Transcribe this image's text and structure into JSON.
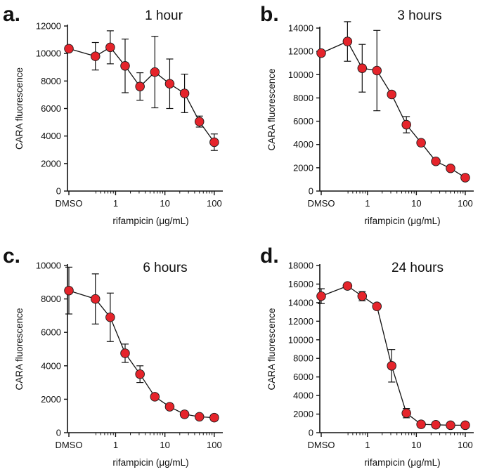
{
  "chart_data": [
    {
      "type": "scatter",
      "panel": "a.",
      "title": "1 hour",
      "xlabel": "rifampicin (μg/mL)",
      "ylabel": "CARA fluorescence",
      "xscale": "log",
      "xticks": [
        "DMSO",
        "1",
        "10",
        "100"
      ],
      "yticks": [
        "0",
        "2000",
        "4000",
        "6000",
        "8000",
        "10000",
        "12000"
      ],
      "ylim": [
        0,
        12000
      ],
      "points": [
        {
          "x": "DMSO",
          "y": 10350,
          "err": 0
        },
        {
          "x": 0.39,
          "y": 9800,
          "err": 1000
        },
        {
          "x": 0.78,
          "y": 10450,
          "err": 1200
        },
        {
          "x": 1.56,
          "y": 9100,
          "err": 1950
        },
        {
          "x": 3.125,
          "y": 7600,
          "err": 1000
        },
        {
          "x": 6.25,
          "y": 8650,
          "err": 2600
        },
        {
          "x": 12.5,
          "y": 7800,
          "err": 1800
        },
        {
          "x": 25,
          "y": 7100,
          "err": 1400
        },
        {
          "x": 50,
          "y": 5050,
          "err": 400
        },
        {
          "x": 100,
          "y": 3550,
          "err": 600
        }
      ]
    },
    {
      "type": "scatter",
      "panel": "b.",
      "title": "3 hours",
      "xlabel": "rifampicin (μg/mL)",
      "ylabel": "CARA fluorescence",
      "xscale": "log",
      "xticks": [
        "DMSO",
        "1",
        "10",
        "100"
      ],
      "yticks": [
        "0",
        "2000",
        "4000",
        "6000",
        "8000",
        "10000",
        "12000",
        "14000"
      ],
      "ylim": [
        0,
        14000
      ],
      "points": [
        {
          "x": "DMSO",
          "y": 11850,
          "err": 0
        },
        {
          "x": 0.39,
          "y": 12850,
          "err": 1700
        },
        {
          "x": 0.78,
          "y": 10550,
          "err": 2050
        },
        {
          "x": 1.56,
          "y": 10350,
          "err": 3450
        },
        {
          "x": 3.125,
          "y": 8300,
          "err": 0
        },
        {
          "x": 6.25,
          "y": 5700,
          "err": 700
        },
        {
          "x": 12.5,
          "y": 4150,
          "err": 0
        },
        {
          "x": 25,
          "y": 2550,
          "err": 0
        },
        {
          "x": 50,
          "y": 1950,
          "err": 0
        },
        {
          "x": 100,
          "y": 1150,
          "err": 0
        }
      ]
    },
    {
      "type": "scatter",
      "panel": "c.",
      "title": "6 hours",
      "xlabel": "rifampicin (μg/mL)",
      "ylabel": "CARA fluorescence",
      "xscale": "log",
      "xticks": [
        "DMSO",
        "1",
        "10",
        "100"
      ],
      "yticks": [
        "0",
        "2000",
        "4000",
        "6000",
        "8000",
        "10000"
      ],
      "ylim": [
        0,
        10000
      ],
      "points": [
        {
          "x": "DMSO",
          "y": 8500,
          "err": 1400
        },
        {
          "x": 0.39,
          "y": 8000,
          "err": 1500
        },
        {
          "x": 0.78,
          "y": 6900,
          "err": 1450
        },
        {
          "x": 1.56,
          "y": 4750,
          "err": 550
        },
        {
          "x": 3.125,
          "y": 3500,
          "err": 500
        },
        {
          "x": 6.25,
          "y": 2150,
          "err": 0
        },
        {
          "x": 12.5,
          "y": 1550,
          "err": 0
        },
        {
          "x": 25,
          "y": 1100,
          "err": 0
        },
        {
          "x": 50,
          "y": 950,
          "err": 0
        },
        {
          "x": 100,
          "y": 900,
          "err": 0
        }
      ]
    },
    {
      "type": "scatter",
      "panel": "d.",
      "title": "24 hours",
      "xlabel": "rifampicin (μg/mL)",
      "ylabel": "CARA fluorescence",
      "xscale": "log",
      "xticks": [
        "DMSO",
        "1",
        "10",
        "100"
      ],
      "yticks": [
        "0",
        "2000",
        "4000",
        "6000",
        "8000",
        "10000",
        "12000",
        "14000",
        "16000",
        "18000"
      ],
      "ylim": [
        0,
        18000
      ],
      "points": [
        {
          "x": "DMSO",
          "y": 14700,
          "err": 800
        },
        {
          "x": 0.39,
          "y": 15800,
          "err": 0
        },
        {
          "x": 0.78,
          "y": 14700,
          "err": 500
        },
        {
          "x": 1.56,
          "y": 13600,
          "err": 0
        },
        {
          "x": 3.125,
          "y": 7200,
          "err": 1750
        },
        {
          "x": 6.25,
          "y": 2100,
          "err": 500
        },
        {
          "x": 12.5,
          "y": 900,
          "err": 0
        },
        {
          "x": 25,
          "y": 850,
          "err": 0
        },
        {
          "x": 50,
          "y": 800,
          "err": 0
        },
        {
          "x": 100,
          "y": 800,
          "err": 0
        }
      ]
    }
  ],
  "colors": {
    "marker_fill": "#e5242b",
    "marker_stroke": "#1a1a1a",
    "line": "#111111",
    "axis": "#111111"
  }
}
